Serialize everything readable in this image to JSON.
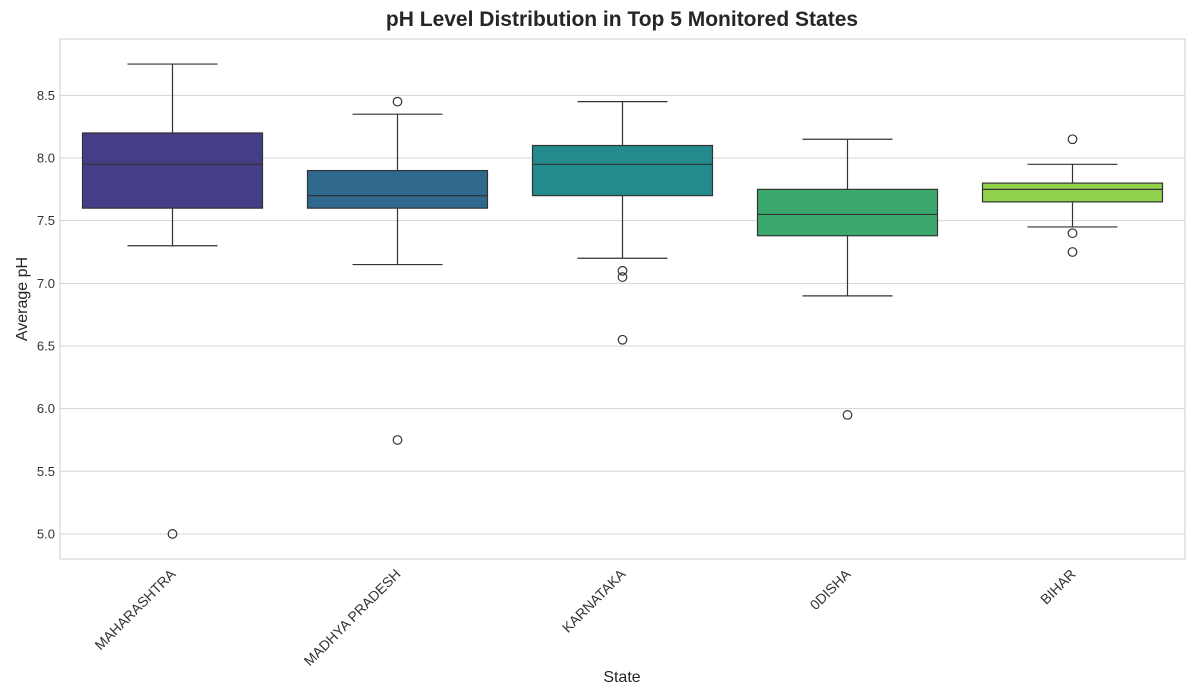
{
  "chart_data": {
    "type": "box",
    "title": "pH Level Distribution in Top 5 Monitored States",
    "xlabel": "State",
    "ylabel": "Average pH",
    "ylim": [
      4.8,
      8.95
    ],
    "yticks": [
      "5.0",
      "5.5",
      "6.0",
      "6.5",
      "7.0",
      "7.5",
      "8.0",
      "8.5"
    ],
    "grid": true,
    "categories": [
      "MAHARASHTRA",
      "MADHYA PRADESH",
      "KARNATAKA",
      "0DISHA",
      "BIHAR"
    ],
    "boxes": [
      {
        "category": "MAHARASHTRA",
        "whisker_low": 7.3,
        "q1": 7.6,
        "median": 7.95,
        "q3": 8.2,
        "whisker_high": 8.75,
        "outliers": [
          5.0
        ],
        "color": "#433e85"
      },
      {
        "category": "MADHYA PRADESH",
        "whisker_low": 7.15,
        "q1": 7.6,
        "median": 7.7,
        "q3": 7.9,
        "whisker_high": 8.35,
        "outliers": [
          8.45,
          5.75
        ],
        "color": "#30698e"
      },
      {
        "category": "KARNATAKA",
        "whisker_low": 7.2,
        "q1": 7.7,
        "median": 7.95,
        "q3": 8.1,
        "whisker_high": 8.45,
        "outliers": [
          7.1,
          7.05,
          6.55
        ],
        "color": "#238a8d"
      },
      {
        "category": "0DISHA",
        "whisker_low": 6.9,
        "q1": 7.38,
        "median": 7.55,
        "q3": 7.75,
        "whisker_high": 8.15,
        "outliers": [
          5.95
        ],
        "color": "#3ba96d"
      },
      {
        "category": "BIHAR",
        "whisker_low": 7.45,
        "q1": 7.65,
        "median": 7.75,
        "q3": 7.8,
        "whisker_high": 7.95,
        "outliers": [
          8.15,
          7.4,
          7.25
        ],
        "color": "#8fd14a"
      }
    ]
  }
}
